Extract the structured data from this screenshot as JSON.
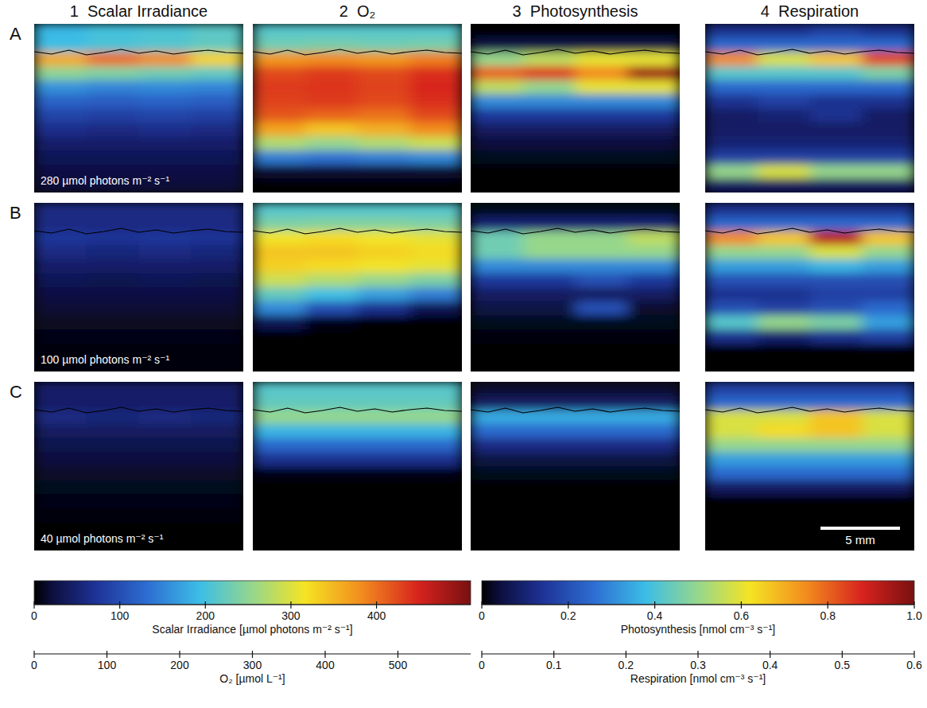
{
  "chart_data": {
    "type": "heatmap",
    "columns": [
      "1  Scalar Irradiance",
      "2  O₂",
      "3  Photosynthesis",
      "4  Respiration"
    ],
    "rows": [
      "A",
      "B",
      "C"
    ],
    "irradiance_labels": [
      "280 µmol photons m⁻² s⁻¹",
      "100 µmol photons m⁻² s⁻¹",
      "40 µmol photons m⁻² s⁻¹"
    ],
    "scale_bar": "5 mm",
    "color_scales": [
      {
        "label": "Scalar Irradiance [µmol photons m⁻² s⁻¹]",
        "range": [
          0,
          510
        ],
        "ticks": [
          0,
          100,
          200,
          300,
          400
        ]
      },
      {
        "label": "O₂ [µmol L⁻¹]",
        "range": [
          0,
          600
        ],
        "ticks": [
          0,
          100,
          200,
          300,
          400,
          500
        ]
      },
      {
        "label": "Photosynthesis [nmol cm⁻³ s⁻¹]",
        "range": [
          0,
          1
        ],
        "ticks": [
          0,
          0.2,
          0.4,
          0.6,
          0.8,
          {
            "value": 1,
            "label": "1.0"
          }
        ]
      },
      {
        "label": "Respiration [nmol cm⁻³ s⁻¹]",
        "range": [
          0,
          0.6
        ],
        "ticks": [
          0,
          0.1,
          0.2,
          0.3,
          0.4,
          0.5,
          0.6
        ]
      }
    ],
    "cells": [
      [
        [
          [
            190,
            200,
            205,
            215
          ],
          [
            195,
            205,
            210,
            220
          ],
          [
            360,
            400,
            380,
            330
          ],
          [
            250,
            240,
            230,
            220
          ],
          [
            160,
            150,
            155,
            150
          ],
          [
            120,
            115,
            120,
            115
          ],
          [
            90,
            85,
            90,
            85
          ],
          [
            65,
            60,
            65,
            60
          ],
          [
            45,
            45,
            45,
            45
          ],
          [
            35,
            35,
            35,
            35
          ],
          [
            25,
            25,
            25,
            25
          ],
          [
            20,
            20,
            20,
            20
          ]
        ],
        [
          [
            250,
            250,
            250,
            250
          ],
          [
            270,
            275,
            270,
            275
          ],
          [
            440,
            450,
            440,
            460
          ],
          [
            500,
            510,
            500,
            520
          ],
          [
            510,
            515,
            505,
            525
          ],
          [
            505,
            510,
            500,
            520
          ],
          [
            490,
            480,
            470,
            500
          ],
          [
            430,
            400,
            420,
            450
          ],
          [
            320,
            300,
            320,
            340
          ],
          [
            170,
            160,
            170,
            180
          ],
          [
            20,
            20,
            20,
            20
          ],
          [
            0,
            0,
            0,
            0
          ]
        ],
        [
          [
            0,
            0,
            0,
            0
          ],
          [
            0.05,
            0.05,
            0.05,
            0.05
          ],
          [
            0.5,
            0.55,
            0.6,
            0.6
          ],
          [
            0.8,
            0.85,
            0.75,
            0.95
          ],
          [
            0.55,
            0.5,
            0.6,
            0.6
          ],
          [
            0.3,
            0.3,
            0.3,
            0.3
          ],
          [
            0.15,
            0.15,
            0.15,
            0.15
          ],
          [
            0.08,
            0.08,
            0.08,
            0.08
          ],
          [
            0.04,
            0.04,
            0.04,
            0.04
          ],
          [
            0.02,
            0.02,
            0.02,
            0.02
          ],
          [
            0,
            0,
            0,
            0
          ],
          [
            0,
            0,
            0,
            0
          ]
        ],
        [
          [
            0.08,
            0.08,
            0.1,
            0.08
          ],
          [
            0.15,
            0.15,
            0.15,
            0.15
          ],
          [
            0.45,
            0.35,
            0.4,
            0.5
          ],
          [
            0.25,
            0.25,
            0.25,
            0.28
          ],
          [
            0.15,
            0.15,
            0.15,
            0.15
          ],
          [
            0.08,
            0.1,
            0.08,
            0.08
          ],
          [
            0.05,
            0.06,
            0.08,
            0.05
          ],
          [
            0.05,
            0.05,
            0.05,
            0.05
          ],
          [
            0.06,
            0.06,
            0.06,
            0.06
          ],
          [
            0.1,
            0.1,
            0.1,
            0.1
          ],
          [
            0.3,
            0.35,
            0.3,
            0.3
          ],
          [
            0.05,
            0.05,
            0.05,
            0.05
          ]
        ]
      ],
      [
        [
          [
            60,
            60,
            60,
            60
          ],
          [
            60,
            60,
            60,
            60
          ],
          [
            75,
            70,
            75,
            70
          ],
          [
            60,
            55,
            60,
            55
          ],
          [
            45,
            45,
            45,
            45
          ],
          [
            35,
            30,
            35,
            30
          ],
          [
            25,
            25,
            25,
            25
          ],
          [
            18,
            18,
            18,
            18
          ],
          [
            12,
            12,
            12,
            12
          ],
          [
            8,
            8,
            8,
            8
          ],
          [
            5,
            5,
            5,
            5
          ],
          [
            3,
            3,
            3,
            3
          ]
        ],
        [
          [
            250,
            250,
            250,
            250
          ],
          [
            280,
            285,
            285,
            280
          ],
          [
            370,
            380,
            370,
            360
          ],
          [
            400,
            400,
            390,
            380
          ],
          [
            390,
            380,
            370,
            360
          ],
          [
            340,
            320,
            300,
            280
          ],
          [
            260,
            230,
            200,
            170
          ],
          [
            180,
            120,
            80,
            40
          ],
          [
            40,
            10,
            0,
            0
          ],
          [
            0,
            0,
            0,
            0
          ],
          [
            0,
            0,
            0,
            0
          ],
          [
            0,
            0,
            0,
            0
          ]
        ],
        [
          [
            0.02,
            0.02,
            0.02,
            0.02
          ],
          [
            0.1,
            0.1,
            0.1,
            0.1
          ],
          [
            0.45,
            0.5,
            0.5,
            0.55
          ],
          [
            0.45,
            0.5,
            0.5,
            0.5
          ],
          [
            0.3,
            0.3,
            0.3,
            0.3
          ],
          [
            0.15,
            0.15,
            0.2,
            0.15
          ],
          [
            0.08,
            0.08,
            0.08,
            0.08
          ],
          [
            0.05,
            0.05,
            0.2,
            0.03
          ],
          [
            0.02,
            0.02,
            0.02,
            0.02
          ],
          [
            0.01,
            0.01,
            0.01,
            0.01
          ],
          [
            0,
            0,
            0,
            0
          ],
          [
            0,
            0,
            0,
            0
          ]
        ],
        [
          [
            0.08,
            0.08,
            0.08,
            0.08
          ],
          [
            0.15,
            0.15,
            0.15,
            0.15
          ],
          [
            0.45,
            0.4,
            0.55,
            0.4
          ],
          [
            0.3,
            0.3,
            0.35,
            0.3
          ],
          [
            0.2,
            0.2,
            0.22,
            0.2
          ],
          [
            0.12,
            0.12,
            0.12,
            0.12
          ],
          [
            0.08,
            0.08,
            0.1,
            0.1
          ],
          [
            0.12,
            0.1,
            0.12,
            0.15
          ],
          [
            0.25,
            0.3,
            0.28,
            0.2
          ],
          [
            0.08,
            0.06,
            0.08,
            0.1
          ],
          [
            0,
            0,
            0,
            0
          ],
          [
            0,
            0,
            0,
            0
          ]
        ]
      ],
      [
        [
          [
            45,
            45,
            45,
            45
          ],
          [
            45,
            45,
            45,
            45
          ],
          [
            60,
            55,
            60,
            55
          ],
          [
            40,
            40,
            40,
            40
          ],
          [
            30,
            30,
            30,
            30
          ],
          [
            22,
            22,
            22,
            22
          ],
          [
            15,
            15,
            15,
            15
          ],
          [
            10,
            10,
            10,
            10
          ],
          [
            6,
            6,
            6,
            6
          ],
          [
            4,
            4,
            4,
            4
          ],
          [
            2,
            2,
            2,
            2
          ],
          [
            1,
            1,
            1,
            1
          ]
        ],
        [
          [
            250,
            250,
            250,
            250
          ],
          [
            260,
            260,
            260,
            260
          ],
          [
            300,
            300,
            300,
            300
          ],
          [
            220,
            220,
            220,
            220
          ],
          [
            150,
            150,
            150,
            150
          ],
          [
            80,
            80,
            80,
            80
          ],
          [
            10,
            10,
            10,
            10
          ],
          [
            0,
            0,
            0,
            0
          ],
          [
            0,
            0,
            0,
            0
          ],
          [
            0,
            0,
            0,
            0
          ],
          [
            0,
            0,
            0,
            0
          ],
          [
            0,
            0,
            0,
            0
          ]
        ],
        [
          [
            0.03,
            0.03,
            0.03,
            0.03
          ],
          [
            0.08,
            0.08,
            0.08,
            0.08
          ],
          [
            0.35,
            0.35,
            0.35,
            0.35
          ],
          [
            0.25,
            0.25,
            0.25,
            0.25
          ],
          [
            0.12,
            0.12,
            0.12,
            0.12
          ],
          [
            0.05,
            0.05,
            0.05,
            0.05
          ],
          [
            0.02,
            0.02,
            0.02,
            0.02
          ],
          [
            0,
            0,
            0,
            0
          ],
          [
            0,
            0,
            0,
            0
          ],
          [
            0,
            0,
            0,
            0
          ],
          [
            0,
            0,
            0,
            0
          ],
          [
            0,
            0,
            0,
            0
          ]
        ],
        [
          [
            0.1,
            0.1,
            0.1,
            0.1
          ],
          [
            0.15,
            0.15,
            0.15,
            0.15
          ],
          [
            0.35,
            0.35,
            0.4,
            0.35
          ],
          [
            0.35,
            0.38,
            0.4,
            0.35
          ],
          [
            0.3,
            0.3,
            0.3,
            0.3
          ],
          [
            0.2,
            0.2,
            0.2,
            0.2
          ],
          [
            0.15,
            0.15,
            0.15,
            0.15
          ],
          [
            0.05,
            0.05,
            0.05,
            0.05
          ],
          [
            0,
            0,
            0,
            0
          ],
          [
            0,
            0,
            0,
            0
          ],
          [
            0,
            0,
            0,
            0
          ],
          [
            0,
            0,
            0,
            0
          ]
        ]
      ]
    ]
  }
}
